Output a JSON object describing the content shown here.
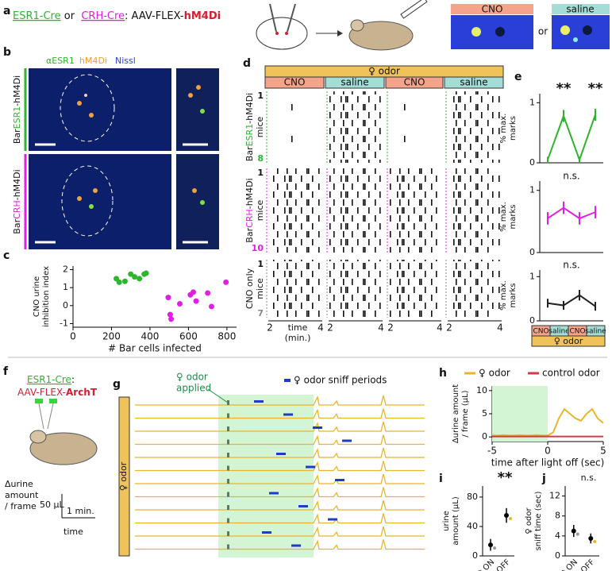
{
  "panel_labels": [
    "a",
    "b",
    "c",
    "d",
    "e",
    "f",
    "g",
    "h",
    "i",
    "j"
  ],
  "panel_a": {
    "parts": [
      "ESR1-Cre",
      " or ",
      "CRH-Cre",
      ": AAV-FLEX-",
      "hM4Di"
    ],
    "cno": "CNO",
    "or": "or",
    "saline": "saline"
  },
  "panel_b": {
    "stains": [
      "αESR1",
      "hM4Di",
      "Nissl"
    ],
    "rows": [
      [
        "Bar",
        "ESR1",
        "-hM4Di"
      ],
      [
        "Bar",
        "CRH",
        "-hM4Di"
      ]
    ]
  },
  "panel_d": {
    "odor": "♀ odor",
    "conditions": [
      "CNO",
      "saline",
      "CNO",
      "saline"
    ],
    "rows": [
      {
        "label": [
          "Bar",
          "ESR1",
          "-hM4Di"
        ],
        "sub": "mice",
        "first": "1",
        "last": "8"
      },
      {
        "label": [
          "Bar",
          "CRH",
          "-hM4Di"
        ],
        "sub": "mice",
        "first": "1",
        "last": "10"
      },
      {
        "label": [
          "CNO only"
        ],
        "sub": "mice",
        "first": "1",
        "last": "7"
      }
    ],
    "x_ticks": [
      "2",
      "4"
    ],
    "x_label": [
      "time",
      "(min.)"
    ]
  },
  "panel_e": {
    "conditions": [
      "CNO",
      "saline",
      "CNO",
      "saline"
    ],
    "odor": "♀ odor"
  },
  "panel_f": {
    "parts": [
      "ESR1-Cre",
      ":",
      "AAV-FLEX-",
      "ArchT"
    ],
    "y_label": [
      "Δurine",
      "amount",
      "/ frame"
    ],
    "scale_y": "50 μL",
    "scale_x": "1 min.",
    "x_label": "time"
  },
  "panel_g": {
    "applied": [
      "♀ odor",
      "applied"
    ],
    "legend": "♀ odor sniff periods",
    "side": "♀ odor"
  },
  "chart_data": [
    {
      "type": "scatter",
      "y_label": [
        "CNO urine",
        "inhibition index"
      ],
      "x_label": "# Bar cells infected",
      "xlim": [
        0,
        850
      ],
      "xticks": [
        0,
        200,
        400,
        600,
        800
      ],
      "ylim": [
        -1.2,
        2.2
      ],
      "yticks": [
        -1,
        0,
        1,
        2
      ],
      "series": [
        {
          "color": "#2db52d",
          "x": [
            225,
            240,
            270,
            300,
            320,
            345,
            370,
            380
          ],
          "values": [
            1.5,
            1.3,
            1.35,
            1.75,
            1.6,
            1.5,
            1.75,
            1.8
          ]
        },
        {
          "color": "#e020e0",
          "x": [
            495,
            505,
            510,
            555,
            610,
            625,
            640,
            700,
            720,
            795
          ],
          "values": [
            0.45,
            -0.5,
            -0.75,
            0.1,
            0.6,
            0.75,
            0.25,
            0.7,
            -0.05,
            1.3
          ]
        }
      ]
    },
    {
      "type": "line",
      "y_label": [
        "% max.",
        "marks"
      ],
      "ylim": [
        0,
        1.15
      ],
      "yticks": [
        0,
        1
      ],
      "color": "#2db52d",
      "values": [
        0.05,
        0.78,
        0.05,
        0.8
      ],
      "errors": [
        0.05,
        0.1,
        0.05,
        0.1
      ],
      "annotations": [
        "**",
        "**"
      ]
    },
    {
      "type": "line",
      "y_label": [
        "% max.",
        "marks"
      ],
      "ylim": [
        0,
        1.15
      ],
      "yticks": [
        0,
        1
      ],
      "color": "#e020e0",
      "values": [
        0.55,
        0.72,
        0.55,
        0.65
      ],
      "errors": [
        0.1,
        0.1,
        0.1,
        0.1
      ],
      "annotations": [
        "n.s."
      ]
    },
    {
      "type": "line",
      "y_label": [
        "% max.",
        "marks"
      ],
      "ylim": [
        0,
        1.15
      ],
      "yticks": [
        0,
        1
      ],
      "color": "#222222",
      "values": [
        0.4,
        0.35,
        0.58,
        0.33
      ],
      "errors": [
        0.1,
        0.1,
        0.12,
        0.1
      ],
      "annotations": [
        "n.s."
      ]
    },
    {
      "type": "timeline",
      "y_label": [
        "Δurine amount",
        "/ frame (μL)"
      ],
      "x_label": "time after light off (sec)",
      "xlim": [
        -5,
        5
      ],
      "xticks": [
        -5,
        0,
        5
      ],
      "ylim": [
        -1,
        11
      ],
      "yticks": [
        0,
        5,
        10
      ],
      "light": [
        -5,
        0
      ],
      "x": [
        -5,
        -4.5,
        -4,
        -3.5,
        -3,
        -2.5,
        -2,
        -1.5,
        -1,
        -0.5,
        0,
        0.5,
        1,
        1.5,
        2,
        2.5,
        3,
        3.5,
        4,
        4.5,
        5
      ],
      "series": [
        {
          "name": "♀ odor",
          "color": "#e8b530",
          "values": [
            0.3,
            0.3,
            0.4,
            0.3,
            0.3,
            0.4,
            0.3,
            0.3,
            0.4,
            0.3,
            0.3,
            1,
            4,
            6,
            5,
            4,
            3.5,
            5,
            6,
            4,
            3
          ]
        },
        {
          "name": "control odor",
          "color": "#d23a4a",
          "values": [
            0.1,
            0.1,
            0.1,
            0.1,
            0.1,
            0.1,
            0.1,
            0.1,
            0.1,
            0.1,
            0.1,
            0.1,
            0.1,
            0.1,
            0.1,
            0.1,
            0.1,
            0.1,
            0.1,
            0.1,
            0.1
          ]
        }
      ]
    },
    {
      "type": "dot",
      "y_label": [
        "urine",
        "amount (μL)"
      ],
      "categories": [
        "light ON",
        "light OFF"
      ],
      "colors": [
        "#999999",
        "#e8b530"
      ],
      "ylim": [
        0,
        95
      ],
      "yticks": [
        0,
        40,
        80
      ],
      "values": [
        15,
        55
      ],
      "errors": [
        8,
        10
      ],
      "annotations": [
        "**"
      ]
    },
    {
      "type": "dot",
      "y_label": [
        "♀ odor",
        "sniff time (sec)"
      ],
      "categories": [
        "light ON",
        "light OFF"
      ],
      "colors": [
        "#999999",
        "#e8b530"
      ],
      "ylim": [
        0,
        14
      ],
      "yticks": [
        0,
        4,
        8,
        12
      ],
      "values": [
        5,
        3.5
      ],
      "errors": [
        1.2,
        1
      ],
      "annotations": [
        "n.s."
      ]
    }
  ]
}
